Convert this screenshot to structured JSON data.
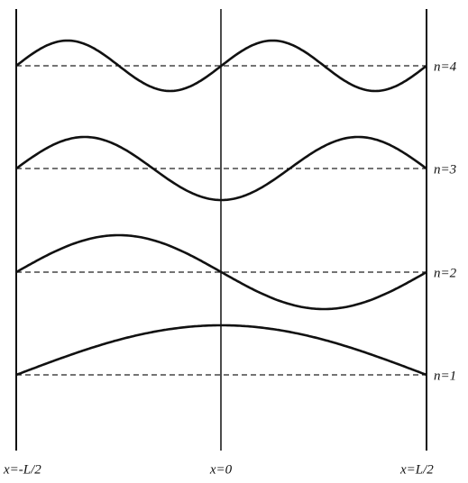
{
  "levels": [
    "n=4",
    "n=3",
    "n=2",
    "n=1"
  ],
  "positions": [
    "x=-L/2",
    "x=0",
    "x=L/2"
  ]
}
